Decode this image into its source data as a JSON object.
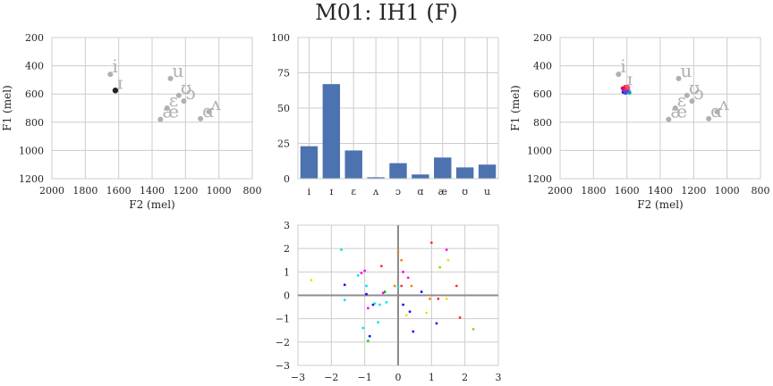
{
  "figure": {
    "title": "M01: IH1 (F)"
  },
  "chart_data": [
    {
      "type": "scatter",
      "panel": "vowel-space-target",
      "xlabel": "F2 (mel)",
      "ylabel": "F1 (mel)",
      "xlim": [
        2000,
        800
      ],
      "ylim": [
        1200,
        200
      ],
      "xticks": [
        2000,
        1800,
        1600,
        1400,
        1200,
        1000,
        800
      ],
      "yticks": [
        200,
        400,
        600,
        800,
        1000,
        1200
      ],
      "grid": true,
      "reference_vowels": [
        {
          "label": "i",
          "f2": 1650,
          "f1": 460
        },
        {
          "label": "u",
          "f2": 1290,
          "f1": 490
        },
        {
          "label": "ʊ",
          "f2": 1240,
          "f1": 610
        },
        {
          "label": "ɛ",
          "f2": 1310,
          "f1": 700
        },
        {
          "label": "ɔ",
          "f2": 1210,
          "f1": 650
        },
        {
          "label": "æ",
          "f2": 1350,
          "f1": 780
        },
        {
          "label": "ɑ",
          "f2": 1110,
          "f1": 775
        },
        {
          "label": "ʌ",
          "f2": 1060,
          "f1": 725
        }
      ],
      "target": {
        "label": "ɪ",
        "f2": 1620,
        "f1": 575
      },
      "colors": {
        "reference": "#b0b0b0",
        "target": "#222222"
      }
    },
    {
      "type": "bar",
      "panel": "vowel-histogram",
      "categories": [
        "i",
        "ɪ",
        "ɛ",
        "ʌ",
        "ɔ",
        "ɑ",
        "æ",
        "ʊ",
        "u"
      ],
      "values": [
        23,
        67,
        20,
        1,
        11,
        3,
        15,
        8,
        10
      ],
      "ylim": [
        0,
        100
      ],
      "yticks": [
        0,
        25,
        50,
        75,
        100
      ],
      "grid": true,
      "colors": {
        "bar": "#4c72b0"
      }
    },
    {
      "type": "scatter",
      "panel": "vowel-space-productions",
      "xlabel": "F2 (mel)",
      "ylabel": "F1 (mel)",
      "xlim": [
        2000,
        800
      ],
      "ylim": [
        1200,
        200
      ],
      "xticks": [
        2000,
        1800,
        1600,
        1400,
        1200,
        1000,
        800
      ],
      "yticks": [
        200,
        400,
        600,
        800,
        1000,
        1200
      ],
      "grid": true,
      "reference_vowels": [
        {
          "label": "i",
          "f2": 1650,
          "f1": 460
        },
        {
          "label": "u",
          "f2": 1290,
          "f1": 490
        },
        {
          "label": "ʊ",
          "f2": 1240,
          "f1": 610
        },
        {
          "label": "ɛ",
          "f2": 1310,
          "f1": 700
        },
        {
          "label": "ɔ",
          "f2": 1210,
          "f1": 650
        },
        {
          "label": "æ",
          "f2": 1350,
          "f1": 780
        },
        {
          "label": "ɑ",
          "f2": 1110,
          "f1": 775
        },
        {
          "label": "ʌ",
          "f2": 1060,
          "f1": 725
        }
      ],
      "target_label": {
        "label": "ɪ",
        "f2": 1600,
        "f1": 540
      },
      "productions": [
        {
          "f2": 1610,
          "f1": 550,
          "color": "#ff2a2a"
        },
        {
          "f2": 1595,
          "f1": 565,
          "color": "#ff00aa"
        },
        {
          "f2": 1620,
          "f1": 585,
          "color": "#1a1aff"
        },
        {
          "f2": 1590,
          "f1": 575,
          "color": "#00ccff"
        },
        {
          "f2": 1605,
          "f1": 560,
          "color": "#2266ff"
        },
        {
          "f2": 1585,
          "f1": 590,
          "color": "#00a0c0"
        },
        {
          "f2": 1600,
          "f1": 575,
          "color": "#e0186a"
        },
        {
          "f2": 1615,
          "f1": 570,
          "color": "#ff2060"
        },
        {
          "f2": 1592,
          "f1": 555,
          "color": "#ff40c0"
        },
        {
          "f2": 1608,
          "f1": 592,
          "color": "#2a50ff"
        },
        {
          "f2": 1625,
          "f1": 560,
          "color": "#cc1060"
        },
        {
          "f2": 1598,
          "f1": 548,
          "color": "#ff5050"
        }
      ],
      "colors": {
        "reference": "#b0b0b0"
      }
    },
    {
      "type": "scatter",
      "panel": "latent-space",
      "xlim": [
        -3,
        3
      ],
      "ylim": [
        -3,
        3
      ],
      "xticks": [
        -3,
        -2,
        -1,
        0,
        1,
        2,
        3
      ],
      "yticks": [
        -3,
        -2,
        -1,
        0,
        1,
        2,
        3
      ],
      "grid": true,
      "axes_lines": true,
      "points": [
        {
          "x": -1.7,
          "y": 1.95,
          "color": "#00e5e5"
        },
        {
          "x": -1.6,
          "y": 0.45,
          "color": "#1010ff"
        },
        {
          "x": -1.6,
          "y": -0.2,
          "color": "#00e5e5"
        },
        {
          "x": -2.6,
          "y": 0.65,
          "color": "#e5e500"
        },
        {
          "x": -1.2,
          "y": 0.85,
          "color": "#00e5e5"
        },
        {
          "x": -1.1,
          "y": 0.95,
          "color": "#ff00ff"
        },
        {
          "x": -1.0,
          "y": 1.05,
          "color": "#ff00ff"
        },
        {
          "x": -0.95,
          "y": 0.4,
          "color": "#00e5e5"
        },
        {
          "x": -0.95,
          "y": 0.05,
          "color": "#1010ff"
        },
        {
          "x": -0.9,
          "y": -0.55,
          "color": "#ff00ff"
        },
        {
          "x": -0.75,
          "y": -0.4,
          "color": "#1010ff"
        },
        {
          "x": -0.7,
          "y": -0.35,
          "color": "#00e5e5"
        },
        {
          "x": -0.55,
          "y": -0.4,
          "color": "#00e5e5"
        },
        {
          "x": -0.5,
          "y": 1.25,
          "color": "#ff2a2a"
        },
        {
          "x": -0.45,
          "y": 0.1,
          "color": "#ff00ff"
        },
        {
          "x": -0.4,
          "y": 0.15,
          "color": "#00b000"
        },
        {
          "x": -0.35,
          "y": -0.3,
          "color": "#00e5e5"
        },
        {
          "x": -0.6,
          "y": -1.15,
          "color": "#00e5e5"
        },
        {
          "x": -1.05,
          "y": -1.4,
          "color": "#00e5e5"
        },
        {
          "x": -0.85,
          "y": -1.75,
          "color": "#1010ff"
        },
        {
          "x": -0.9,
          "y": -1.95,
          "color": "#00e000"
        },
        {
          "x": -0.1,
          "y": 0.4,
          "color": "#ff7f00"
        },
        {
          "x": 0.0,
          "y": 1.85,
          "color": "#ff7f00"
        },
        {
          "x": 0.0,
          "y": 0.35,
          "color": "#00e5e5"
        },
        {
          "x": 0.1,
          "y": 1.5,
          "color": "#ff7f00"
        },
        {
          "x": 0.1,
          "y": 0.4,
          "color": "#ff2a2a"
        },
        {
          "x": 0.15,
          "y": -0.4,
          "color": "#1010ff"
        },
        {
          "x": 0.15,
          "y": 1.0,
          "color": "#ff00ff"
        },
        {
          "x": 0.3,
          "y": 0.75,
          "color": "#ff00ff"
        },
        {
          "x": 0.25,
          "y": -0.85,
          "color": "#e5e500"
        },
        {
          "x": 0.35,
          "y": -0.7,
          "color": "#1010ff"
        },
        {
          "x": 0.4,
          "y": 0.4,
          "color": "#ff7f00"
        },
        {
          "x": 0.45,
          "y": -1.55,
          "color": "#1010ff"
        },
        {
          "x": 0.7,
          "y": 0.15,
          "color": "#1010ff"
        },
        {
          "x": 0.85,
          "y": -0.75,
          "color": "#e5e500"
        },
        {
          "x": 0.95,
          "y": -0.15,
          "color": "#ff7f00"
        },
        {
          "x": 1.0,
          "y": 2.25,
          "color": "#ff2a2a"
        },
        {
          "x": 1.15,
          "y": -1.2,
          "color": "#1010ff"
        },
        {
          "x": 1.2,
          "y": -0.15,
          "color": "#ff2a2a"
        },
        {
          "x": 1.25,
          "y": 1.2,
          "color": "#7fe500"
        },
        {
          "x": 1.45,
          "y": 1.95,
          "color": "#ff00ff"
        },
        {
          "x": 1.5,
          "y": 1.5,
          "color": "#e5e500"
        },
        {
          "x": 1.45,
          "y": -0.15,
          "color": "#e5e500"
        },
        {
          "x": 1.75,
          "y": 0.4,
          "color": "#ff2a2a"
        },
        {
          "x": 1.85,
          "y": -0.95,
          "color": "#ff2a2a"
        },
        {
          "x": 2.25,
          "y": -1.45,
          "color": "#7fe500"
        }
      ]
    }
  ]
}
